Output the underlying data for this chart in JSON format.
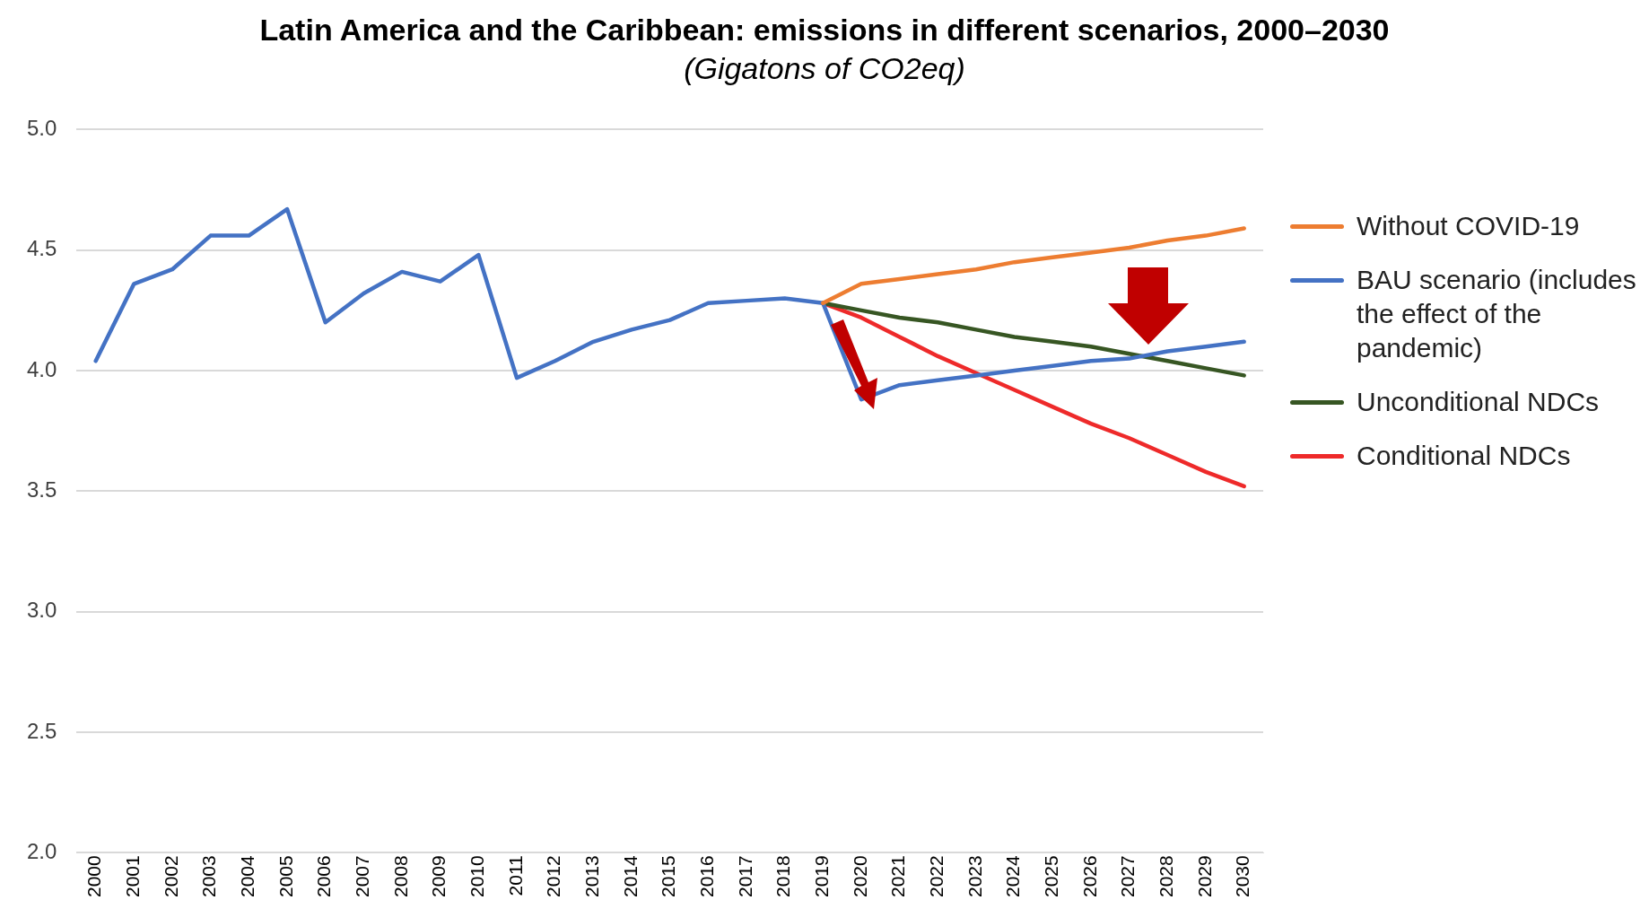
{
  "chart_data": {
    "type": "line",
    "title": "Latin America and the Caribbean: emissions in different scenarios, 2000–2030",
    "subtitle": "(Gigatons of CO2eq)",
    "categories": [
      "2000",
      "2001",
      "2002",
      "2003",
      "2004",
      "2005",
      "2006",
      "2007",
      "2008",
      "2009",
      "2010",
      "2011",
      "2012",
      "2013",
      "2014",
      "2015",
      "2016",
      "2017",
      "2018",
      "2019",
      "2020",
      "2021",
      "2022",
      "2023",
      "2024",
      "2025",
      "2026",
      "2027",
      "2028",
      "2029",
      "2030"
    ],
    "series": [
      {
        "name": "Without COVID-19",
        "color": "#ed7d31",
        "values": [
          null,
          null,
          null,
          null,
          null,
          null,
          null,
          null,
          null,
          null,
          null,
          null,
          null,
          null,
          null,
          null,
          null,
          null,
          null,
          4.28,
          4.36,
          4.38,
          4.4,
          4.42,
          4.45,
          4.47,
          4.49,
          4.51,
          4.54,
          4.56,
          4.59
        ]
      },
      {
        "name": "BAU scenario (includes the effect of the pandemic)",
        "color": "#4472c4",
        "values": [
          4.04,
          4.36,
          4.42,
          4.56,
          4.56,
          4.67,
          4.2,
          4.32,
          4.41,
          4.37,
          4.48,
          3.97,
          4.04,
          4.12,
          4.17,
          4.21,
          4.28,
          4.29,
          4.3,
          4.28,
          3.88,
          3.94,
          3.96,
          3.98,
          4.0,
          4.02,
          4.04,
          4.05,
          4.08,
          4.1,
          4.12
        ]
      },
      {
        "name": "Unconditional NDCs",
        "color": "#375623",
        "values": [
          null,
          null,
          null,
          null,
          null,
          null,
          null,
          null,
          null,
          null,
          null,
          null,
          null,
          null,
          null,
          null,
          null,
          null,
          null,
          4.28,
          4.25,
          4.22,
          4.2,
          4.17,
          4.14,
          4.12,
          4.1,
          4.07,
          4.04,
          4.01,
          3.98
        ]
      },
      {
        "name": "Conditional NDCs",
        "color": "#ee2a2a",
        "values": [
          null,
          null,
          null,
          null,
          null,
          null,
          null,
          null,
          null,
          null,
          null,
          null,
          null,
          null,
          null,
          null,
          null,
          null,
          null,
          4.28,
          4.22,
          4.14,
          4.06,
          3.99,
          3.92,
          3.85,
          3.78,
          3.72,
          3.65,
          3.58,
          3.52
        ]
      }
    ],
    "ylim": [
      2.0,
      5.0
    ],
    "yticks": [
      {
        "value": 2.0,
        "label": "2.0"
      },
      {
        "value": 2.5,
        "label": "2.5"
      },
      {
        "value": 3.0,
        "label": "3.0"
      },
      {
        "value": 3.5,
        "label": "3.5"
      },
      {
        "value": 4.0,
        "label": "4.0"
      },
      {
        "value": 4.5,
        "label": "4.5"
      },
      {
        "value": 5.0,
        "label": "5.0"
      }
    ],
    "grid": "y",
    "legend": "right",
    "marker": "none",
    "line_style": "solid"
  }
}
